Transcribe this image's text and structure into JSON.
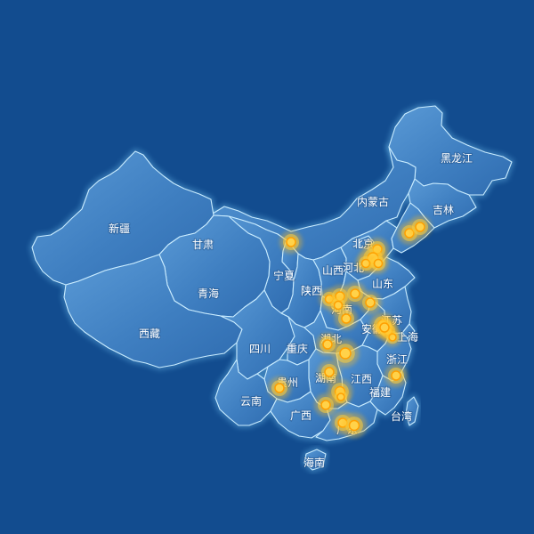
{
  "map": {
    "background": "#124c8f",
    "land_color": "#4f8fce",
    "border_color": "#c9ecff",
    "marker_color": "#ffc22a",
    "label_color": "#ffffff",
    "regions": [
      {
        "id": "heilongjiang",
        "name": "黑龙江"
      },
      {
        "id": "jilin",
        "name": "吉林"
      },
      {
        "id": "neimenggu",
        "name": "内蒙古"
      },
      {
        "id": "xinjiang",
        "name": "新疆"
      },
      {
        "id": "gansu",
        "name": "甘肃"
      },
      {
        "id": "ningxia",
        "name": "宁夏"
      },
      {
        "id": "qinghai",
        "name": "青海"
      },
      {
        "id": "xizang",
        "name": "西藏"
      },
      {
        "id": "shaanxi",
        "name": "陕西"
      },
      {
        "id": "shanxi",
        "name": "山西"
      },
      {
        "id": "hebei",
        "name": "河北"
      },
      {
        "id": "beijing",
        "name": "北京"
      },
      {
        "id": "shandong",
        "name": "山东"
      },
      {
        "id": "henan",
        "name": "河南"
      },
      {
        "id": "sichuan",
        "name": "四川"
      },
      {
        "id": "chongqing",
        "name": "重庆"
      },
      {
        "id": "hubei",
        "name": "湖北"
      },
      {
        "id": "anhui",
        "name": "安徽"
      },
      {
        "id": "jiangsu",
        "name": "江苏"
      },
      {
        "id": "shanghai",
        "name": "上海"
      },
      {
        "id": "zhejiang",
        "name": "浙江"
      },
      {
        "id": "jiangxi",
        "name": "江西"
      },
      {
        "id": "hunan",
        "name": "湖南"
      },
      {
        "id": "guizhou",
        "name": "贵州"
      },
      {
        "id": "yunnan",
        "name": "云南"
      },
      {
        "id": "guangxi",
        "name": "广西"
      },
      {
        "id": "guangdong",
        "name": "广东"
      },
      {
        "id": "fujian",
        "name": "福建"
      },
      {
        "id": "taiwan",
        "name": "台湾"
      },
      {
        "id": "hainan",
        "name": "海南"
      }
    ],
    "marker_count": 36
  }
}
